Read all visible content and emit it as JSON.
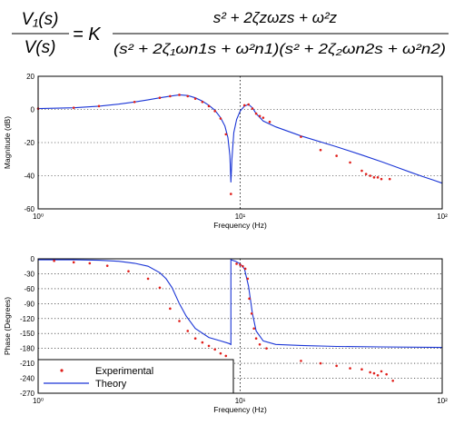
{
  "equation": {
    "lhs_num": "V₁(s)",
    "lhs_den": "V(s)",
    "equals": "= K",
    "rhs_num": "s² + 2ζzωzs + ω²z",
    "rhs_den": "(s² + 2ζ₁ωn1s + ω²n1)(s² + 2ζ₂ωn2s + ω²n2)"
  },
  "chart_data": [
    {
      "type": "line",
      "xlabel": "Frequency (Hz)",
      "ylabel": "Magnitude (dB)",
      "xscale": "log",
      "xlim": [
        1,
        100
      ],
      "ylim": [
        -60,
        20
      ],
      "xticks": [
        1,
        10,
        100
      ],
      "xtick_labels": [
        "10⁰",
        "10¹",
        "10²"
      ],
      "yticks": [
        20,
        0,
        -20,
        -40,
        -60
      ],
      "ytick_labels": [
        "20",
        "0",
        "-20",
        "-40",
        "-60"
      ],
      "grid": "dotted",
      "vline_x": 10,
      "series": [
        {
          "name": "Theory",
          "color": "#1a35d6",
          "style": "line",
          "x": [
            1,
            1.5,
            2,
            2.5,
            3,
            3.5,
            4,
            4.5,
            5,
            5.5,
            6,
            6.5,
            7,
            7.5,
            8,
            8.4,
            8.7,
            8.9,
            9.0,
            9.1,
            9.3,
            9.6,
            10.0,
            10.5,
            11.0,
            11.5,
            12.0,
            13.0,
            15,
            20,
            30,
            40,
            50,
            60,
            70,
            80,
            90,
            100
          ],
          "y": [
            0.5,
            1.0,
            2.0,
            3.2,
            4.5,
            5.8,
            7.0,
            8.0,
            8.8,
            8.4,
            7.0,
            5.0,
            2.5,
            -0.5,
            -5,
            -10,
            -17,
            -28,
            -44,
            -30,
            -14,
            -6,
            -1,
            2.0,
            3.0,
            1.0,
            -2.5,
            -7,
            -10.5,
            -16,
            -22.5,
            -27.5,
            -31.5,
            -35,
            -38,
            -40.5,
            -42.5,
            -44.5
          ]
        },
        {
          "name": "Experimental",
          "color": "#e0201c",
          "style": "markers",
          "x": [
            1,
            1.5,
            2,
            3,
            4,
            4.5,
            5,
            5.5,
            6,
            6.5,
            7,
            7.5,
            8,
            8.5,
            9.0,
            10.5,
            11.0,
            11.5,
            12.0,
            12.5,
            13.0,
            14,
            20,
            25,
            30,
            35,
            40,
            42,
            44,
            46,
            48,
            50,
            55
          ],
          "y": [
            0.5,
            1.0,
            2.0,
            4.5,
            7.0,
            8.0,
            8.8,
            8.0,
            6.5,
            4.5,
            2.0,
            -1.0,
            -5.5,
            -15,
            -51,
            2.5,
            3.0,
            0.5,
            -2.5,
            -4.0,
            -5.0,
            -7.5,
            -16.5,
            -24.5,
            -28,
            -32,
            -37,
            -39,
            -40,
            -41,
            -41,
            -42,
            -42
          ]
        }
      ]
    },
    {
      "type": "line",
      "xlabel": "Frequency (Hz)",
      "ylabel": "Phase (Degrees)",
      "xscale": "log",
      "xlim": [
        1,
        100
      ],
      "ylim": [
        -270,
        0
      ],
      "xticks": [
        1,
        10,
        100
      ],
      "xtick_labels": [
        "10⁰",
        "10¹",
        "10²"
      ],
      "yticks": [
        0,
        -30,
        -60,
        -90,
        -120,
        -150,
        -180,
        -210,
        -240,
        -270
      ],
      "ytick_labels": [
        "0",
        "-30",
        "-60",
        "-90",
        "-120",
        "-150",
        "-180",
        "-210",
        "-240",
        "-270"
      ],
      "grid": "dotted",
      "vline_x": 10,
      "legend": {
        "placement": "bottom-left",
        "entries": [
          "Experimental",
          "Theory"
        ]
      },
      "series": [
        {
          "name": "Theory",
          "color": "#1a35d6",
          "style": "line",
          "x": [
            1,
            1.5,
            2,
            2.5,
            3,
            3.5,
            4,
            4.3,
            4.6,
            5,
            5.4,
            6,
            7,
            8,
            8.8,
            9.0,
            9.0,
            9.5,
            10.0,
            10.5,
            11.0,
            11.5,
            12.0,
            13.0,
            15,
            20,
            30,
            50,
            100
          ],
          "y": [
            -2,
            -2,
            -3,
            -5,
            -9,
            -15,
            -28,
            -40,
            -58,
            -90,
            -115,
            -140,
            -158,
            -165,
            -170,
            -172,
            -2,
            -5,
            -10,
            -20,
            -55,
            -110,
            -145,
            -165,
            -172,
            -174,
            -176,
            -177,
            -178
          ]
        },
        {
          "name": "Experimental",
          "color": "#e0201c",
          "style": "markers",
          "x": [
            1.2,
            1.5,
            1.8,
            2.2,
            2.8,
            3.5,
            4.0,
            4.5,
            5.0,
            5.5,
            6.0,
            6.5,
            7.0,
            7.5,
            8.0,
            8.5,
            9.6,
            10.0,
            10.3,
            10.6,
            10.9,
            11.1,
            11.4,
            11.7,
            12.0,
            12.5,
            13.5,
            20,
            25,
            30,
            35,
            40,
            44,
            46,
            48,
            50,
            53,
            57
          ],
          "y": [
            -4,
            -7,
            -9,
            -14,
            -25,
            -40,
            -58,
            -100,
            -125,
            -145,
            -160,
            -168,
            -175,
            -182,
            -190,
            -195,
            -10,
            -12,
            -15,
            -20,
            -40,
            -80,
            -110,
            -140,
            -160,
            -172,
            -180,
            -205,
            -210,
            -215,
            -220,
            -222,
            -228,
            -230,
            -234,
            -226,
            -232,
            -245
          ]
        }
      ]
    }
  ]
}
